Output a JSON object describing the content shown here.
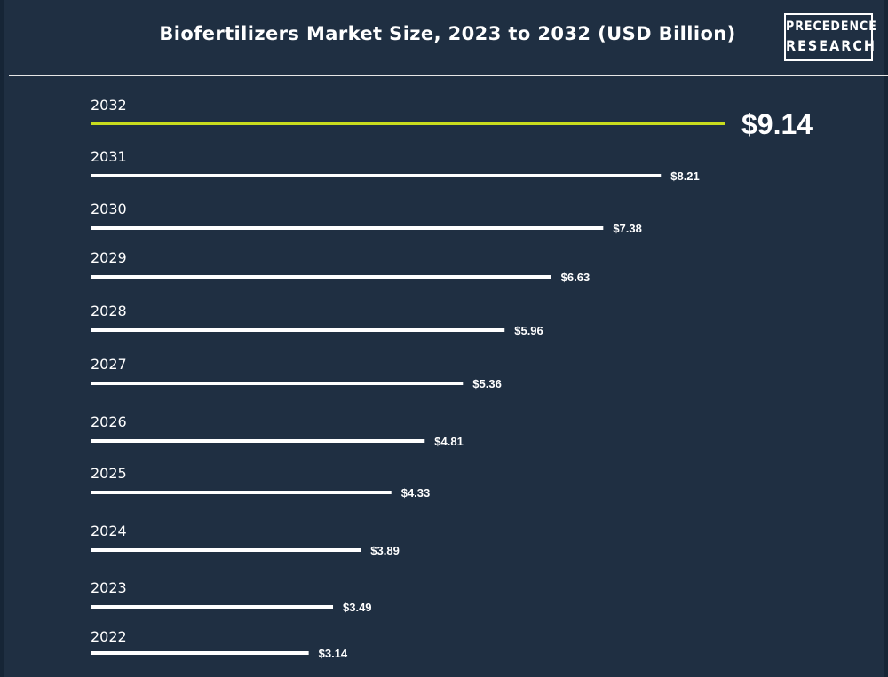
{
  "header": {
    "title": "Biofertilizers Market Size, 2023 to 2032 (USD Billion)",
    "logo_line1": "PRECEDENCE",
    "logo_line2": "RESEARCH"
  },
  "chart_data": {
    "type": "bar",
    "orientation": "horizontal",
    "title": "Biofertilizers Market Size, 2023 to 2032 (USD Billion)",
    "categories": [
      "2032",
      "2031",
      "2030",
      "2029",
      "2028",
      "2027",
      "2026",
      "2025",
      "2024",
      "2023",
      "2022"
    ],
    "values": [
      9.14,
      8.21,
      7.38,
      6.63,
      5.96,
      5.36,
      4.81,
      4.33,
      3.89,
      3.49,
      3.14
    ],
    "value_labels": [
      "$9.14",
      "$8.21",
      "$7.38",
      "$6.63",
      "$5.96",
      "$5.36",
      "$4.81",
      "$4.33",
      "$3.89",
      "$3.49",
      "$3.14"
    ],
    "highlight_index": 0,
    "xlabel": "",
    "ylabel": "",
    "grid": false,
    "legend": "none",
    "colors": {
      "bar": "#ffffff",
      "highlight": "#c8dc1e",
      "background": "#1f2f42",
      "text": "#ffffff"
    }
  }
}
